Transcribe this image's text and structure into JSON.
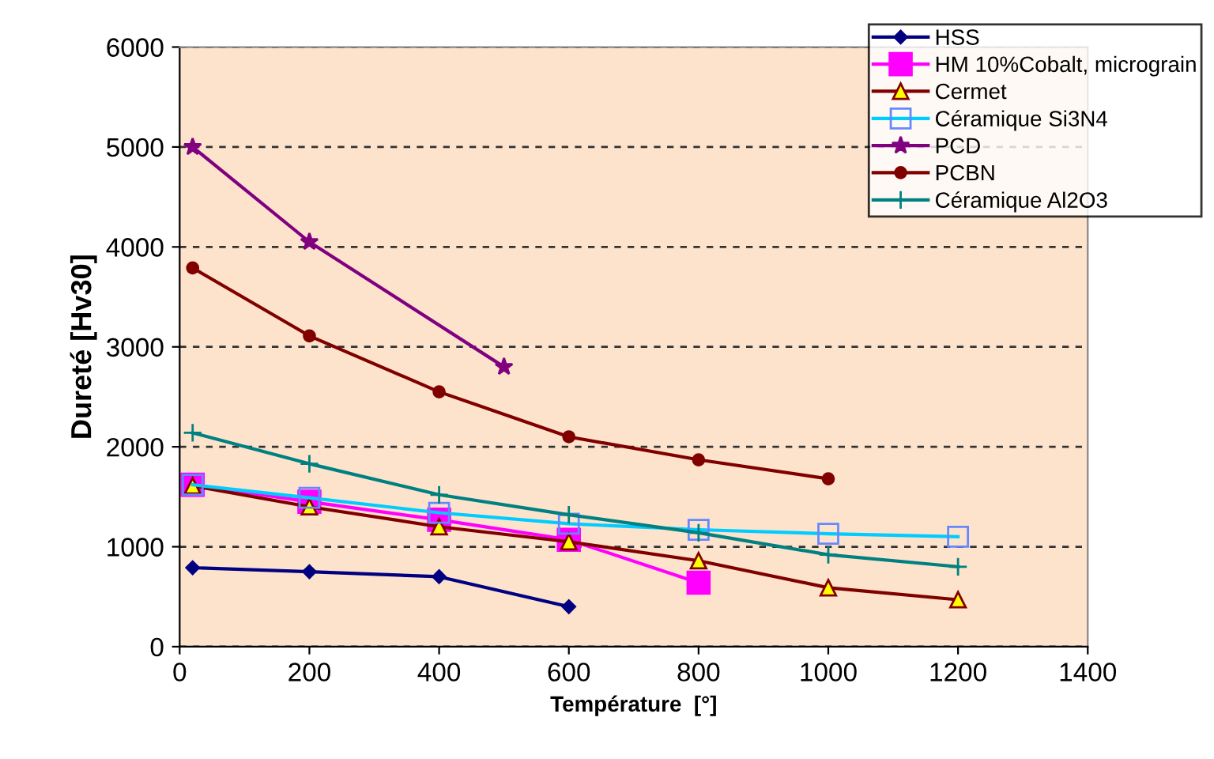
{
  "chart_data": {
    "type": "line",
    "xlabel": "Température  [°]",
    "ylabel": "Dureté [Hv30]",
    "xlim": [
      0,
      1400
    ],
    "xticks": [
      0,
      200,
      400,
      600,
      800,
      1000,
      1200,
      1400
    ],
    "ylim": [
      0,
      6000
    ],
    "yticks": [
      0,
      1000,
      2000,
      3000,
      4000,
      5000,
      6000
    ],
    "grid": "y",
    "legend": "top right",
    "line_style": "solid",
    "series": [
      {
        "name": "HSS",
        "color": "#000080",
        "marker": "diamond",
        "x": [
          20,
          200,
          400,
          600
        ],
        "values": [
          790,
          750,
          700,
          400
        ]
      },
      {
        "name": "HM 10%Cobalt, micrograin",
        "color": "#ff00ff",
        "marker": "square",
        "x": [
          20,
          200,
          400,
          600,
          800
        ],
        "values": [
          1620,
          1450,
          1270,
          1070,
          640
        ]
      },
      {
        "name": "Cermet",
        "color": "#800000",
        "marker": "triangle",
        "x": [
          20,
          200,
          400,
          600,
          800,
          1000,
          1200
        ],
        "values": [
          1610,
          1400,
          1200,
          1050,
          860,
          590,
          470
        ]
      },
      {
        "name": "Céramique Si3N4",
        "color": "#00ccff",
        "marker": "square",
        "x": [
          20,
          200,
          400,
          600,
          800,
          1000,
          1200
        ],
        "values": [
          1620,
          1490,
          1340,
          1230,
          1170,
          1130,
          1100
        ]
      },
      {
        "name": "PCD",
        "color": "#800080",
        "marker": "star",
        "x": [
          20,
          200,
          500
        ],
        "values": [
          5000,
          4050,
          2800
        ]
      },
      {
        "name": "PCBN",
        "color": "#800000",
        "marker": "circle",
        "x": [
          20,
          200,
          400,
          600,
          800,
          1000
        ],
        "values": [
          3790,
          3110,
          2550,
          2100,
          1870,
          1680
        ]
      },
      {
        "name": "Céramique Al2O3",
        "color": "#008080",
        "marker": "cross",
        "x": [
          20,
          200,
          400,
          600,
          800,
          1000,
          1200
        ],
        "values": [
          2140,
          1830,
          1520,
          1320,
          1140,
          920,
          800
        ]
      }
    ]
  }
}
